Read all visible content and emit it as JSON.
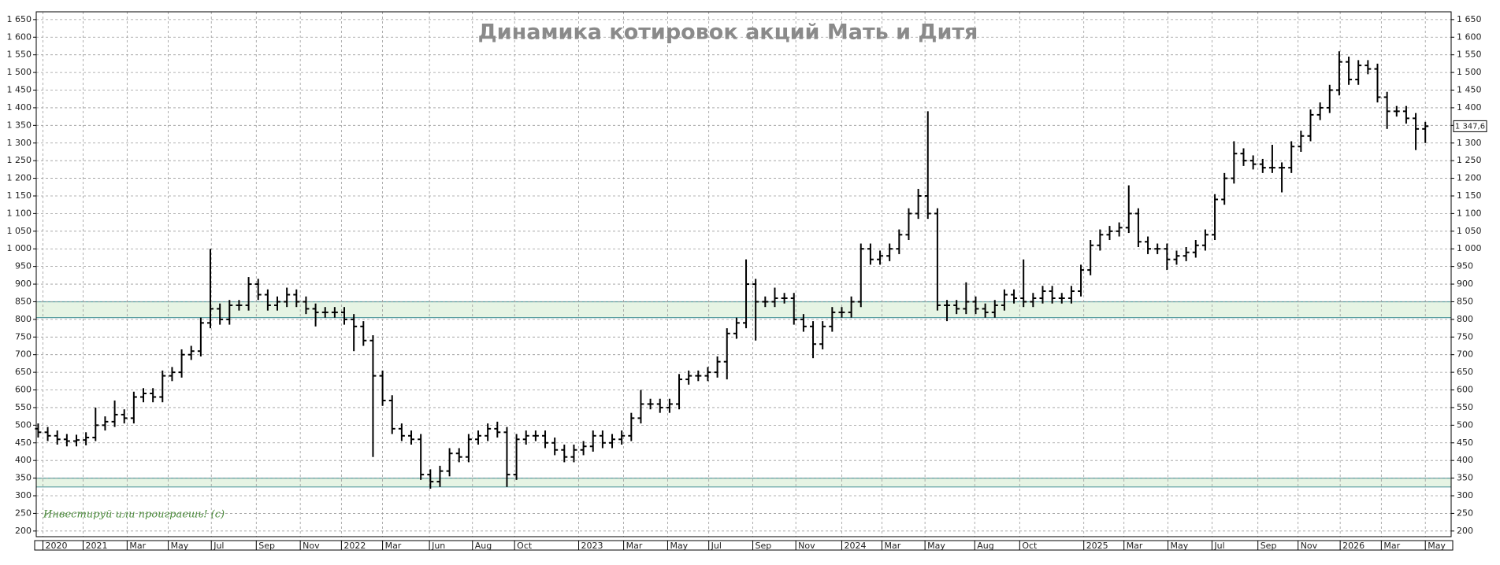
{
  "chart_data": {
    "type": "ohlc",
    "title": "Динамика котировок акций Мать и Дитя",
    "watermark": "Инвестируй или проиграешь! (с)",
    "color": "#000000",
    "grid": true,
    "xlim": [
      -0.2,
      147.7
    ],
    "ylim": [
      184,
      1672
    ],
    "yticks": [
      200,
      250,
      300,
      350,
      400,
      450,
      500,
      550,
      600,
      650,
      700,
      750,
      800,
      850,
      900,
      950,
      {
        "value": 1000,
        "label": "1 000"
      },
      {
        "value": 1050,
        "label": "1 050"
      },
      {
        "value": 1100,
        "label": "1 100"
      },
      {
        "value": 1150,
        "label": "1 150"
      },
      {
        "value": 1200,
        "label": "1 200"
      },
      {
        "value": 1250,
        "label": "1 250"
      },
      {
        "value": 1300,
        "label": "1 300"
      },
      {
        "value": 1350,
        "label": "1 350"
      },
      {
        "value": 1400,
        "label": "1 400"
      },
      {
        "value": 1450,
        "label": "1 450"
      },
      {
        "value": 1500,
        "label": "1 500"
      },
      {
        "value": 1550,
        "label": "1 550"
      },
      {
        "value": 1600,
        "label": "1 600"
      },
      {
        "value": 1650,
        "label": "1 650"
      }
    ],
    "xticks": [
      {
        "value": 0.5,
        "label": "2020"
      },
      {
        "value": 4.7,
        "label": "2021"
      },
      {
        "value": 9.3,
        "label": "Mar"
      },
      {
        "value": 13.6,
        "label": "May"
      },
      {
        "value": 18.1,
        "label": "Jul"
      },
      {
        "value": 22.8,
        "label": "Sep"
      },
      {
        "value": 27.4,
        "label": "Nov"
      },
      {
        "value": 31.7,
        "label": "2022"
      },
      {
        "value": 36,
        "label": "Mar"
      },
      {
        "value": 40.9,
        "label": "Jun"
      },
      {
        "value": 45.4,
        "label": "Aug"
      },
      {
        "value": 49.8,
        "label": "Oct"
      },
      {
        "value": 56.5,
        "label": "2023"
      },
      {
        "value": 61.2,
        "label": "Mar"
      },
      {
        "value": 65.8,
        "label": "May"
      },
      {
        "value": 70.1,
        "label": "Jul"
      },
      {
        "value": 74.7,
        "label": "Sep"
      },
      {
        "value": 79.2,
        "label": "Nov"
      },
      {
        "value": 84,
        "label": "2024"
      },
      {
        "value": 88.2,
        "label": "Mar"
      },
      {
        "value": 92.7,
        "label": "May"
      },
      {
        "value": 97.9,
        "label": "Aug"
      },
      {
        "value": 102.6,
        "label": "Oct"
      },
      {
        "value": 109.3,
        "label": "2025"
      },
      {
        "value": 113.5,
        "label": "Mar"
      },
      {
        "value": 118.1,
        "label": "May"
      },
      {
        "value": 122.7,
        "label": "Jul"
      },
      {
        "value": 127.5,
        "label": "Sep"
      },
      {
        "value": 131.7,
        "label": "Nov"
      },
      {
        "value": 136.1,
        "label": "2026"
      },
      {
        "value": 140.4,
        "label": "Mar"
      },
      {
        "value": 145,
        "label": "May"
      }
    ],
    "zones": [
      [
        805,
        850
      ],
      [
        325,
        350
      ]
    ],
    "last_price": {
      "value": 1347.6,
      "label": "1 347,6"
    },
    "open": [
      490,
      480,
      470,
      460,
      455,
      458,
      465,
      500,
      510,
      530,
      520,
      580,
      590,
      580,
      640,
      650,
      700,
      710,
      790,
      830,
      800,
      840,
      840,
      900,
      870,
      840,
      850,
      870,
      850,
      830,
      820,
      820,
      820,
      800,
      780,
      740,
      640,
      570,
      490,
      470,
      460,
      360,
      340,
      370,
      420,
      410,
      460,
      470,
      490,
      480,
      360,
      460,
      470,
      470,
      450,
      430,
      410,
      430,
      440,
      470,
      450,
      460,
      470,
      520,
      560,
      560,
      550,
      560,
      630,
      640,
      640,
      650,
      680,
      760,
      790,
      900,
      850,
      850,
      860,
      860,
      800,
      780,
      730,
      780,
      820,
      820,
      850,
      1000,
      970,
      980,
      1000,
      1040,
      1100,
      1150,
      1100,
      840,
      840,
      830,
      850,
      830,
      820,
      840,
      870,
      860,
      850,
      860,
      880,
      860,
      860,
      880,
      940,
      1010,
      1040,
      1050,
      1060,
      1100,
      1020,
      1000,
      1000,
      970,
      980,
      990,
      1010,
      1040,
      1140,
      1200,
      1270,
      1250,
      1240,
      1230,
      1230,
      1230,
      1290,
      1320,
      1380,
      1400,
      1450,
      1530,
      1480,
      1520,
      1510,
      1430,
      1390,
      1390,
      1370,
      1340
    ],
    "high": [
      505,
      495,
      485,
      475,
      473,
      480,
      550,
      525,
      570,
      545,
      595,
      605,
      605,
      655,
      665,
      715,
      725,
      805,
      1000,
      845,
      855,
      855,
      920,
      915,
      885,
      865,
      890,
      885,
      865,
      845,
      835,
      835,
      835,
      815,
      795,
      755,
      655,
      585,
      505,
      485,
      475,
      375,
      385,
      435,
      435,
      475,
      485,
      505,
      510,
      495,
      475,
      485,
      485,
      485,
      465,
      445,
      445,
      455,
      485,
      485,
      475,
      485,
      535,
      600,
      575,
      575,
      575,
      645,
      655,
      655,
      665,
      695,
      775,
      805,
      970,
      915,
      865,
      890,
      875,
      875,
      815,
      795,
      795,
      835,
      835,
      865,
      1015,
      1015,
      995,
      1015,
      1055,
      1115,
      1170,
      1390,
      1115,
      855,
      855,
      905,
      865,
      845,
      855,
      885,
      885,
      970,
      875,
      895,
      895,
      875,
      895,
      955,
      1025,
      1055,
      1065,
      1075,
      1180,
      1115,
      1035,
      1015,
      1015,
      995,
      1005,
      1025,
      1055,
      1155,
      1215,
      1305,
      1285,
      1265,
      1255,
      1295,
      1245,
      1305,
      1335,
      1395,
      1415,
      1465,
      1560,
      1545,
      1535,
      1535,
      1525,
      1445,
      1405,
      1405,
      1385,
      1360
    ],
    "low": [
      465,
      455,
      445,
      440,
      440,
      443,
      455,
      485,
      495,
      505,
      505,
      565,
      565,
      565,
      625,
      635,
      685,
      695,
      775,
      785,
      785,
      825,
      825,
      855,
      825,
      825,
      835,
      835,
      815,
      780,
      805,
      805,
      785,
      710,
      725,
      410,
      555,
      475,
      455,
      445,
      345,
      320,
      325,
      355,
      395,
      395,
      445,
      455,
      465,
      325,
      345,
      445,
      455,
      435,
      415,
      395,
      395,
      415,
      425,
      435,
      435,
      445,
      455,
      505,
      545,
      535,
      535,
      545,
      615,
      625,
      625,
      635,
      630,
      745,
      775,
      740,
      835,
      835,
      845,
      785,
      765,
      690,
      715,
      765,
      805,
      805,
      835,
      955,
      955,
      965,
      985,
      1025,
      1085,
      1085,
      825,
      795,
      815,
      815,
      815,
      805,
      805,
      825,
      845,
      835,
      835,
      845,
      845,
      845,
      845,
      865,
      925,
      995,
      1025,
      1035,
      1045,
      1005,
      985,
      985,
      940,
      955,
      965,
      975,
      995,
      1025,
      1125,
      1185,
      1235,
      1225,
      1215,
      1215,
      1160,
      1215,
      1275,
      1305,
      1365,
      1385,
      1435,
      1465,
      1465,
      1495,
      1415,
      1340,
      1375,
      1355,
      1280,
      1300
    ],
    "close": [
      480,
      470,
      460,
      455,
      458,
      465,
      500,
      510,
      530,
      520,
      580,
      590,
      580,
      640,
      650,
      700,
      710,
      790,
      830,
      800,
      840,
      840,
      900,
      870,
      840,
      850,
      870,
      850,
      830,
      820,
      820,
      820,
      800,
      780,
      740,
      640,
      570,
      490,
      470,
      460,
      360,
      340,
      370,
      420,
      410,
      460,
      470,
      490,
      480,
      360,
      460,
      470,
      470,
      450,
      430,
      410,
      430,
      440,
      470,
      450,
      460,
      470,
      520,
      560,
      560,
      550,
      560,
      630,
      640,
      640,
      650,
      680,
      760,
      790,
      900,
      850,
      850,
      860,
      860,
      800,
      780,
      730,
      780,
      820,
      820,
      850,
      1000,
      970,
      980,
      1000,
      1040,
      1100,
      1150,
      1100,
      840,
      840,
      830,
      850,
      830,
      820,
      840,
      870,
      860,
      850,
      860,
      880,
      860,
      860,
      880,
      940,
      1010,
      1040,
      1050,
      1060,
      1100,
      1020,
      1000,
      1000,
      970,
      980,
      990,
      1010,
      1040,
      1140,
      1200,
      1270,
      1250,
      1240,
      1230,
      1230,
      1230,
      1290,
      1320,
      1380,
      1400,
      1450,
      1530,
      1480,
      1520,
      1510,
      1430,
      1390,
      1390,
      1370,
      1340,
      1347.6
    ]
  }
}
